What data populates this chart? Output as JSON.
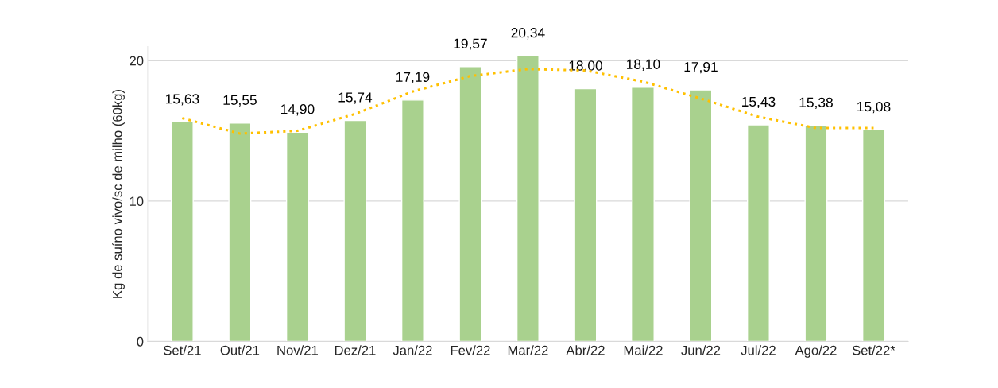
{
  "chart_data": {
    "type": "bar",
    "ylabel": "Kg de suíno vivo/sc de milho (60kg)",
    "categories": [
      "Set/21",
      "Out/21",
      "Nov/21",
      "Dez/21",
      "Jan/22",
      "Fev/22",
      "Mar/22",
      "Abr/22",
      "Mai/22",
      "Jun/22",
      "Jul/22",
      "Ago/22",
      "Set/22*"
    ],
    "series": [
      {
        "color": "#a9d18e",
        "values": [
          15.63,
          15.55,
          14.9,
          15.74,
          17.19,
          19.57,
          20.34,
          18.0,
          18.1,
          17.91,
          15.43,
          15.38,
          15.08
        ],
        "value_labels": [
          "15,63",
          "15,55",
          "14,90",
          "15,74",
          "17,19",
          "19,57",
          "20,34",
          "18,00",
          "18,10",
          "17,91",
          "15,43",
          "15,38",
          "15,08"
        ]
      },
      {
        "type": "line",
        "color": "#ffc000",
        "line_style": "dotted",
        "values": [
          15.9,
          14.8,
          15.0,
          16.2,
          17.8,
          18.9,
          19.4,
          19.3,
          18.5,
          17.3,
          16.0,
          15.2,
          15.2
        ]
      }
    ],
    "ylim": [
      0,
      21
    ],
    "yticks": [
      0,
      10,
      20
    ],
    "grid": "y",
    "legend": false
  }
}
